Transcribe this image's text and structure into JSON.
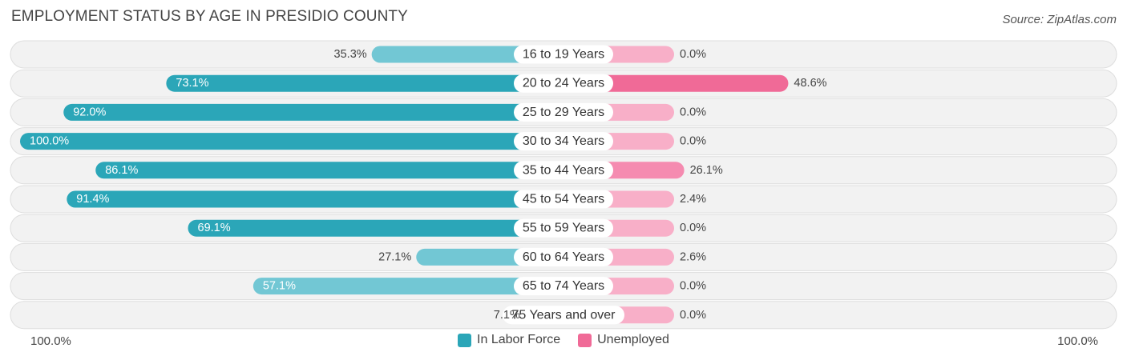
{
  "title": "EMPLOYMENT STATUS BY AGE IN PRESIDIO COUNTY",
  "source": "Source: ZipAtlas.com",
  "axis": {
    "left_label": "100.0%",
    "right_label": "100.0%"
  },
  "legend": [
    {
      "label": "In Labor Force",
      "color": "#2ba6b8"
    },
    {
      "label": "Unemployed",
      "color": "#f06a97"
    }
  ],
  "chart_data": {
    "type": "bar",
    "orientation": "diverging-horizontal",
    "title": "EMPLOYMENT STATUS BY AGE IN PRESIDIO COUNTY",
    "categories": [
      "16 to 19 Years",
      "20 to 24 Years",
      "25 to 29 Years",
      "30 to 34 Years",
      "35 to 44 Years",
      "45 to 54 Years",
      "55 to 59 Years",
      "60 to 64 Years",
      "65 to 74 Years",
      "75 Years and over"
    ],
    "series": [
      {
        "name": "In Labor Force",
        "values": [
          35.3,
          73.1,
          92.0,
          100.0,
          86.1,
          91.4,
          69.1,
          27.1,
          57.1,
          7.1
        ],
        "labels": [
          "35.3%",
          "73.1%",
          "92.0%",
          "100.0%",
          "86.1%",
          "91.4%",
          "69.1%",
          "27.1%",
          "57.1%",
          "7.1%"
        ]
      },
      {
        "name": "Unemployed",
        "values": [
          0.0,
          48.6,
          0.0,
          0.0,
          26.1,
          2.4,
          0.0,
          2.6,
          0.0,
          0.0
        ],
        "labels": [
          "0.0%",
          "48.6%",
          "0.0%",
          "0.0%",
          "26.1%",
          "2.4%",
          "0.0%",
          "2.6%",
          "0.0%",
          "0.0%"
        ]
      }
    ],
    "xlim": [
      0,
      100
    ],
    "xlabel_left": "100.0%",
    "xlabel_right": "100.0%",
    "legend_position": "bottom-center"
  }
}
